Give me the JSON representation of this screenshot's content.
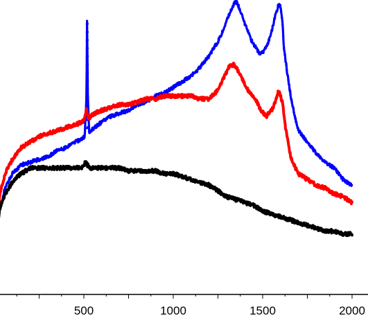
{
  "chart_data": {
    "type": "line",
    "title": "",
    "xlabel": "",
    "ylabel": "",
    "xlim": [
      0,
      2040
    ],
    "ylim": [
      0,
      100
    ],
    "x_ticks": [
      500,
      1000,
      1500,
      2000
    ],
    "x_tick_labels": [
      "500",
      "1000",
      "1500",
      "2000"
    ],
    "grid": false,
    "legend": "none",
    "series": [
      {
        "color": "#0000ff",
        "marker": "triangle",
        "x": [
          0,
          30,
          60,
          100,
          150,
          200,
          250,
          300,
          350,
          400,
          450,
          490,
          505,
          515,
          518,
          522,
          530,
          540,
          560,
          600,
          650,
          700,
          750,
          800,
          850,
          900,
          950,
          1000,
          1050,
          1100,
          1150,
          1200,
          1250,
          1280,
          1310,
          1340,
          1350,
          1360,
          1380,
          1400,
          1420,
          1440,
          1460,
          1480,
          1500,
          1520,
          1540,
          1560,
          1575,
          1590,
          1600,
          1610,
          1620,
          1640,
          1660,
          1680,
          1700,
          1750,
          1800,
          1850,
          1900,
          1950,
          2000
        ],
        "y": [
          9,
          30,
          37,
          42,
          45,
          46,
          47,
          48,
          50,
          51,
          53,
          54,
          55,
          70,
          95,
          70,
          56,
          57,
          58,
          60,
          62,
          63,
          64,
          66,
          67,
          69,
          70,
          72,
          74,
          76,
          79,
          83,
          88,
          92,
          97,
          101,
          102,
          101,
          98,
          94,
          91,
          88,
          86,
          84,
          84,
          86,
          89,
          94,
          98,
          101,
          100,
          95,
          85,
          76,
          68,
          62,
          57,
          53,
          49,
          46,
          44,
          40,
          38
        ]
      },
      {
        "color": "#ff0000",
        "marker": "circle",
        "x": [
          0,
          30,
          60,
          100,
          150,
          200,
          250,
          300,
          350,
          400,
          450,
          490,
          505,
          515,
          525,
          540,
          560,
          600,
          650,
          700,
          750,
          800,
          850,
          900,
          950,
          1000,
          1050,
          1100,
          1150,
          1200,
          1250,
          1280,
          1310,
          1340,
          1370,
          1400,
          1430,
          1460,
          1490,
          1520,
          1550,
          1570,
          1590,
          1610,
          1630,
          1660,
          1700,
          1750,
          1800,
          1850,
          1900,
          1950,
          2000
        ],
        "y": [
          10,
          35,
          42,
          47,
          51,
          53,
          55,
          56,
          57,
          58,
          59,
          60,
          61,
          65,
          61,
          62,
          63,
          64,
          65,
          66,
          66,
          67,
          68,
          68,
          69,
          69,
          69,
          69,
          68,
          68,
          71,
          75,
          79,
          80,
          77,
          73,
          70,
          68,
          64,
          62,
          64,
          67,
          71,
          67,
          57,
          47,
          42,
          40,
          38,
          37,
          35,
          34,
          32
        ]
      },
      {
        "color": "#000000",
        "marker": "square",
        "x": [
          0,
          30,
          60,
          100,
          130,
          150,
          200,
          250,
          300,
          350,
          400,
          450,
          490,
          500,
          510,
          520,
          540,
          560,
          600,
          650,
          700,
          750,
          800,
          850,
          900,
          950,
          1000,
          1050,
          1100,
          1150,
          1200,
          1250,
          1300,
          1350,
          1400,
          1450,
          1500,
          1550,
          1600,
          1650,
          1700,
          1750,
          1800,
          1850,
          1900,
          1950,
          2000
        ],
        "y": [
          13,
          30,
          35,
          39,
          41,
          42,
          44,
          44,
          44,
          44,
          44,
          44,
          44,
          45,
          46,
          45,
          44,
          44,
          44,
          44,
          44,
          43,
          43,
          43,
          43,
          42,
          42,
          41,
          40,
          39,
          38,
          36,
          34,
          33,
          32,
          31,
          29,
          28,
          27,
          26,
          25,
          24,
          23,
          22,
          22,
          21,
          21
        ]
      }
    ]
  }
}
